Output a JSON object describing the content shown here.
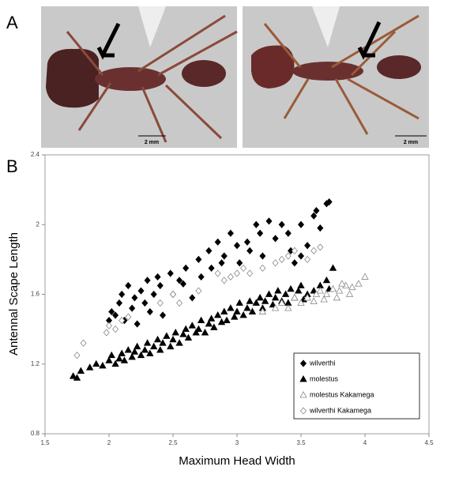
{
  "panel_labels": [
    "A",
    "B"
  ],
  "scale_bars": [
    "2 mm",
    "2 mm"
  ],
  "chart_data": {
    "type": "scatter",
    "xlabel": "Maximum Head Width",
    "ylabel": "Antennal Scape Length",
    "xlim": [
      1.5,
      4.5
    ],
    "xticks": [
      1.5,
      2,
      2.5,
      3,
      3.5,
      4,
      4.5
    ],
    "ylim": [
      0.8,
      2.4
    ],
    "yticks": [
      0.8,
      1.2,
      1.6,
      2,
      2.4
    ],
    "legend": "lower right",
    "series": [
      {
        "name": "wilverthi",
        "color": "#000000",
        "marker": "diamond",
        "filled": true,
        "x": [
          2.0,
          2.02,
          2.05,
          2.08,
          2.1,
          2.12,
          2.15,
          2.18,
          2.2,
          2.25,
          2.28,
          2.3,
          2.32,
          2.35,
          2.4,
          2.42,
          2.48,
          2.5,
          2.55,
          2.58,
          2.6,
          2.65,
          2.7,
          2.72,
          2.78,
          2.8,
          2.85,
          2.88,
          2.9,
          2.95,
          3.0,
          3.02,
          3.08,
          3.1,
          3.15,
          3.18,
          3.2,
          3.25,
          3.3,
          3.35,
          3.4,
          3.42,
          3.5,
          3.55,
          3.6,
          3.62,
          3.65,
          3.7,
          3.72,
          3.45,
          3.5,
          2.22,
          2.38
        ],
        "values": [
          1.45,
          1.5,
          1.48,
          1.55,
          1.6,
          1.45,
          1.65,
          1.52,
          1.58,
          1.62,
          1.55,
          1.68,
          1.5,
          1.6,
          1.65,
          1.48,
          1.72,
          1.6,
          1.68,
          1.66,
          1.75,
          1.58,
          1.8,
          1.7,
          1.85,
          1.75,
          1.9,
          1.78,
          1.82,
          1.95,
          1.88,
          1.78,
          1.9,
          1.85,
          2.0,
          1.95,
          1.82,
          2.02,
          1.92,
          2.0,
          1.95,
          1.85,
          2.0,
          1.88,
          2.05,
          2.08,
          1.98,
          2.12,
          2.13,
          1.78,
          1.82,
          1.43,
          1.7
        ]
      },
      {
        "name": "molestus",
        "color": "#000000",
        "marker": "triangle",
        "filled": true,
        "x": [
          1.72,
          1.75,
          1.78,
          1.85,
          1.9,
          1.95,
          2.0,
          2.02,
          2.05,
          2.08,
          2.1,
          2.12,
          2.15,
          2.18,
          2.2,
          2.22,
          2.25,
          2.28,
          2.3,
          2.32,
          2.35,
          2.38,
          2.4,
          2.42,
          2.45,
          2.48,
          2.5,
          2.52,
          2.55,
          2.58,
          2.6,
          2.62,
          2.65,
          2.68,
          2.7,
          2.72,
          2.75,
          2.78,
          2.8,
          2.82,
          2.85,
          2.88,
          2.9,
          2.92,
          2.95,
          2.98,
          3.0,
          3.02,
          3.05,
          3.08,
          3.1,
          3.12,
          3.15,
          3.18,
          3.2,
          3.22,
          3.25,
          3.28,
          3.3,
          3.32,
          3.35,
          3.38,
          3.4,
          3.42,
          3.45,
          3.48,
          3.5,
          3.52,
          3.55,
          3.6,
          3.65,
          3.7,
          3.75,
          3.72
        ],
        "values": [
          1.13,
          1.12,
          1.16,
          1.18,
          1.2,
          1.19,
          1.22,
          1.25,
          1.2,
          1.23,
          1.26,
          1.22,
          1.28,
          1.24,
          1.27,
          1.3,
          1.25,
          1.28,
          1.32,
          1.26,
          1.3,
          1.34,
          1.28,
          1.32,
          1.36,
          1.3,
          1.34,
          1.38,
          1.32,
          1.37,
          1.4,
          1.35,
          1.42,
          1.38,
          1.4,
          1.45,
          1.38,
          1.43,
          1.46,
          1.41,
          1.48,
          1.44,
          1.5,
          1.45,
          1.52,
          1.47,
          1.5,
          1.55,
          1.48,
          1.52,
          1.56,
          1.5,
          1.55,
          1.58,
          1.52,
          1.56,
          1.6,
          1.54,
          1.58,
          1.62,
          1.56,
          1.6,
          1.55,
          1.63,
          1.58,
          1.62,
          1.65,
          1.57,
          1.6,
          1.62,
          1.65,
          1.68,
          1.75,
          1.63
        ]
      },
      {
        "name": "molestus Kakamega",
        "color": "#888888",
        "marker": "triangle",
        "filled": false,
        "x": [
          3.2,
          3.3,
          3.35,
          3.4,
          3.45,
          3.5,
          3.55,
          3.6,
          3.62,
          3.65,
          3.7,
          3.75,
          3.78,
          3.8,
          3.85,
          3.88,
          3.9,
          3.95,
          4.0,
          3.82,
          3.68
        ],
        "values": [
          1.5,
          1.52,
          1.55,
          1.52,
          1.58,
          1.55,
          1.58,
          1.56,
          1.6,
          1.62,
          1.6,
          1.63,
          1.58,
          1.62,
          1.65,
          1.6,
          1.64,
          1.66,
          1.7,
          1.66,
          1.57
        ]
      },
      {
        "name": "wilverthi Kakamega",
        "color": "#888888",
        "marker": "diamond",
        "filled": false,
        "x": [
          1.75,
          1.8,
          1.98,
          2.0,
          2.05,
          2.1,
          2.15,
          2.4,
          2.5,
          2.7,
          2.9,
          2.95,
          3.0,
          3.05,
          3.1,
          3.2,
          3.3,
          3.35,
          3.4,
          3.45,
          3.6,
          3.65,
          3.55,
          2.55,
          2.85
        ],
        "values": [
          1.25,
          1.32,
          1.38,
          1.42,
          1.4,
          1.45,
          1.47,
          1.55,
          1.6,
          1.62,
          1.68,
          1.7,
          1.72,
          1.75,
          1.72,
          1.75,
          1.78,
          1.8,
          1.82,
          1.85,
          1.85,
          1.87,
          1.8,
          1.55,
          1.72
        ]
      }
    ]
  }
}
